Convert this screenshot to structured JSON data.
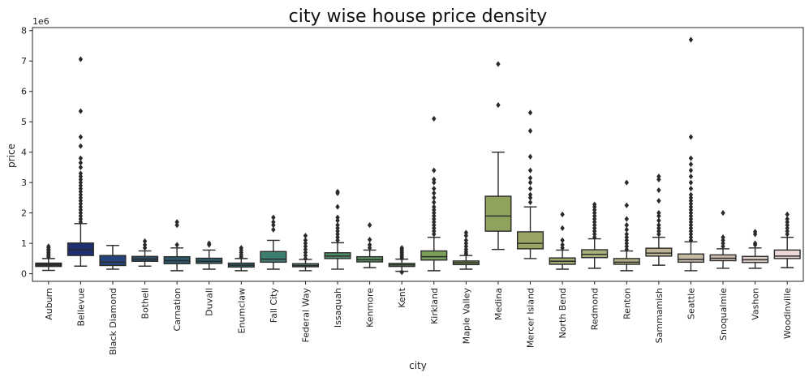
{
  "chart_data": {
    "type": "box",
    "title": "city wise house price density",
    "xlabel": "city",
    "ylabel": "price",
    "y_scale_label": "1e6",
    "ylim": [
      -0.25,
      8.1
    ],
    "yticks": [
      0,
      1,
      2,
      3,
      4,
      5,
      6,
      7,
      8
    ],
    "grid": false,
    "categories": [
      "Auburn",
      "Bellevue",
      "Black Diamond",
      "Bothell",
      "Carnation",
      "Duvall",
      "Enumclaw",
      "Fall City",
      "Federal Way",
      "Issaquah",
      "Kenmore",
      "Kent",
      "Kirkland",
      "Maple Valley",
      "Medina",
      "Mercer Island",
      "North Bend",
      "Redmond",
      "Renton",
      "Sammamish",
      "Seattle",
      "Snoqualmie",
      "Vashon",
      "Woodinville"
    ],
    "colors": [
      "#2b2d3a",
      "#1f2f6f",
      "#26447c",
      "#2a4f6d",
      "#2c5a6a",
      "#2e6169",
      "#316a6a",
      "#3f7f72",
      "#4a8a72",
      "#4f8e6a",
      "#5a9362",
      "#6a9a5e",
      "#7a9f5a",
      "#86a258",
      "#8fa35c",
      "#98a564",
      "#a1a96f",
      "#aaae7a",
      "#b2b285",
      "#bcb294",
      "#c5b9a3",
      "#cfc1b4",
      "#dccbc6",
      "#ecd8d8"
    ],
    "boxes": [
      {
        "q1": 0.24,
        "median": 0.29,
        "q3": 0.35,
        "whislo": 0.11,
        "whishi": 0.5,
        "fliers": [
          0.55,
          0.6,
          0.65,
          0.7,
          0.75,
          0.8,
          0.85,
          0.9
        ]
      },
      {
        "q1": 0.6,
        "median": 0.8,
        "q3": 1.01,
        "whislo": 0.25,
        "whishi": 1.65,
        "fliers": [
          1.7,
          1.8,
          1.9,
          2.0,
          2.1,
          2.2,
          2.3,
          2.4,
          2.5,
          2.6,
          2.7,
          2.8,
          2.9,
          3.0,
          3.1,
          3.2,
          3.3,
          3.5,
          3.65,
          3.8,
          4.2,
          4.5,
          5.35,
          7.06
        ]
      },
      {
        "q1": 0.27,
        "median": 0.38,
        "q3": 0.6,
        "whislo": 0.15,
        "whishi": 0.93,
        "fliers": []
      },
      {
        "q1": 0.41,
        "median": 0.48,
        "q3": 0.57,
        "whislo": 0.25,
        "whishi": 0.75,
        "fliers": [
          0.85,
          0.95,
          1.07
        ]
      },
      {
        "q1": 0.33,
        "median": 0.43,
        "q3": 0.56,
        "whislo": 0.1,
        "whishi": 0.85,
        "fliers": [
          0.95,
          1.6,
          1.7
        ]
      },
      {
        "q1": 0.34,
        "median": 0.41,
        "q3": 0.51,
        "whislo": 0.15,
        "whishi": 0.78,
        "fliers": [
          0.95,
          1.0
        ]
      },
      {
        "q1": 0.22,
        "median": 0.28,
        "q3": 0.35,
        "whislo": 0.1,
        "whishi": 0.5,
        "fliers": [
          0.55,
          0.62,
          0.7,
          0.78,
          0.85
        ]
      },
      {
        "q1": 0.38,
        "median": 0.48,
        "q3": 0.73,
        "whislo": 0.15,
        "whishi": 1.1,
        "fliers": [
          1.45,
          1.6,
          1.7,
          1.85
        ]
      },
      {
        "q1": 0.23,
        "median": 0.27,
        "q3": 0.33,
        "whislo": 0.1,
        "whishi": 0.47,
        "fliers": [
          0.5,
          0.6,
          0.7,
          0.8,
          0.9,
          1.0,
          1.1,
          1.25
        ]
      },
      {
        "q1": 0.5,
        "median": 0.58,
        "q3": 0.69,
        "whislo": 0.15,
        "whishi": 1.02,
        "fliers": [
          1.1,
          1.2,
          1.3,
          1.4,
          1.5,
          1.6,
          1.75,
          1.85,
          2.2,
          2.65,
          2.7
        ]
      },
      {
        "q1": 0.39,
        "median": 0.46,
        "q3": 0.56,
        "whislo": 0.2,
        "whishi": 0.78,
        "fliers": [
          0.85,
          0.95,
          1.12,
          1.6
        ]
      },
      {
        "q1": 0.24,
        "median": 0.29,
        "q3": 0.34,
        "whislo": 0.08,
        "whishi": 0.48,
        "fliers": [
          0.5,
          0.55,
          0.6,
          0.65,
          0.7,
          0.75,
          0.8,
          0.85,
          0.05
        ]
      },
      {
        "q1": 0.45,
        "median": 0.56,
        "q3": 0.75,
        "whislo": 0.1,
        "whishi": 1.2,
        "fliers": [
          1.3,
          1.4,
          1.5,
          1.6,
          1.7,
          1.8,
          1.9,
          2.0,
          2.1,
          2.2,
          2.35,
          2.5,
          2.65,
          2.8,
          3.0,
          3.1,
          3.4,
          5.1
        ]
      },
      {
        "q1": 0.3,
        "median": 0.36,
        "q3": 0.42,
        "whislo": 0.15,
        "whishi": 0.6,
        "fliers": [
          0.65,
          0.72,
          0.8,
          0.9,
          1.0,
          1.1,
          1.25,
          1.35
        ]
      },
      {
        "q1": 1.4,
        "median": 1.9,
        "q3": 2.55,
        "whislo": 0.8,
        "whishi": 4.0,
        "fliers": [
          5.55,
          6.9
        ]
      },
      {
        "q1": 0.82,
        "median": 1.0,
        "q3": 1.38,
        "whislo": 0.5,
        "whishi": 2.2,
        "fliers": [
          2.35,
          2.5,
          2.6,
          2.8,
          3.0,
          3.15,
          3.4,
          3.85,
          4.7,
          5.3
        ]
      },
      {
        "q1": 0.31,
        "median": 0.41,
        "q3": 0.52,
        "whislo": 0.15,
        "whishi": 0.78,
        "fliers": [
          0.85,
          0.95,
          1.1,
          1.5,
          1.95
        ]
      },
      {
        "q1": 0.53,
        "median": 0.64,
        "q3": 0.79,
        "whislo": 0.18,
        "whishi": 1.15,
        "fliers": [
          1.2,
          1.3,
          1.4,
          1.5,
          1.6,
          1.7,
          1.8,
          1.9,
          2.0,
          2.1,
          2.2,
          2.28
        ]
      },
      {
        "q1": 0.31,
        "median": 0.38,
        "q3": 0.5,
        "whislo": 0.1,
        "whishi": 0.75,
        "fliers": [
          0.8,
          0.9,
          1.0,
          1.1,
          1.2,
          1.3,
          1.45,
          1.6,
          1.8,
          2.25,
          3.0
        ]
      },
      {
        "q1": 0.58,
        "median": 0.68,
        "q3": 0.84,
        "whislo": 0.28,
        "whishi": 1.2,
        "fliers": [
          1.3,
          1.4,
          1.5,
          1.6,
          1.75,
          1.9,
          2.0,
          2.4,
          2.75,
          3.1,
          3.2
        ]
      },
      {
        "q1": 0.38,
        "median": 0.47,
        "q3": 0.65,
        "whislo": 0.1,
        "whishi": 1.05,
        "fliers": [
          1.1,
          1.2,
          1.3,
          1.4,
          1.5,
          1.6,
          1.7,
          1.8,
          1.9,
          2.0,
          2.1,
          2.2,
          2.3,
          2.4,
          2.5,
          2.6,
          2.8,
          3.0,
          3.2,
          3.4,
          3.6,
          3.8,
          4.5,
          7.7
        ]
      },
      {
        "q1": 0.43,
        "median": 0.51,
        "q3": 0.62,
        "whislo": 0.18,
        "whishi": 0.82,
        "fliers": [
          0.9,
          1.0,
          1.1,
          1.2,
          2.0
        ]
      },
      {
        "q1": 0.37,
        "median": 0.46,
        "q3": 0.57,
        "whislo": 0.18,
        "whishi": 0.85,
        "fliers": [
          0.95,
          1.0,
          1.3,
          1.38
        ]
      },
      {
        "q1": 0.5,
        "median": 0.58,
        "q3": 0.78,
        "whislo": 0.2,
        "whishi": 1.2,
        "fliers": [
          1.3,
          1.4,
          1.5,
          1.6,
          1.7,
          1.8,
          1.95
        ]
      }
    ]
  }
}
